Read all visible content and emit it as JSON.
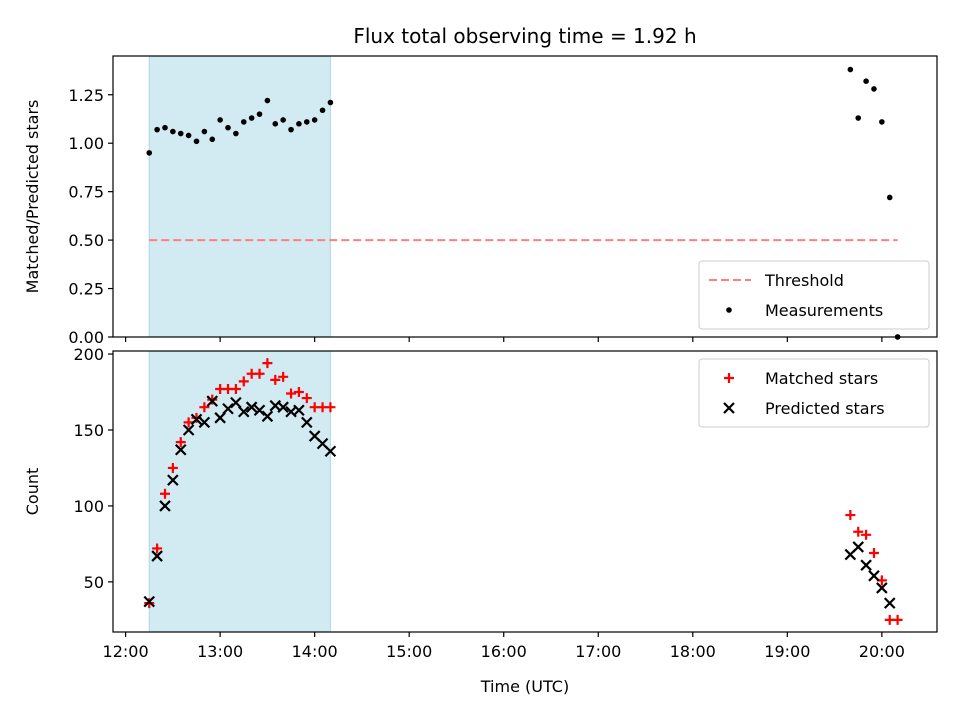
{
  "chart_data": {
    "title": "Flux total observing time = 1.92 h",
    "xlabel": "Time (UTC)",
    "x_ticks": [
      "12:00",
      "13:00",
      "14:00",
      "15:00",
      "16:00",
      "17:00",
      "18:00",
      "19:00",
      "20:00"
    ],
    "x_range": [
      "11:52",
      "20:35"
    ],
    "shaded_span": [
      "12:15",
      "14:10"
    ],
    "shade_color": "#add8e6",
    "panels": [
      {
        "type": "scatter",
        "ylabel": "Matched/Predicted stars",
        "ylim": [
          0.0,
          1.45
        ],
        "y_ticks": [
          "0.00",
          "0.25",
          "0.50",
          "0.75",
          "1.00",
          "1.25"
        ],
        "legend_position": "lower-right",
        "threshold": {
          "name": "Threshold",
          "value": 0.5,
          "x_range": [
            "12:15",
            "20:10"
          ],
          "color": "#ff7f7f"
        },
        "series": [
          {
            "name": "Measurements",
            "marker": "dot",
            "color": "#000000",
            "points": [
              [
                "12:15",
                0.95
              ],
              [
                "12:20",
                1.07
              ],
              [
                "12:25",
                1.08
              ],
              [
                "12:30",
                1.06
              ],
              [
                "12:35",
                1.05
              ],
              [
                "12:40",
                1.04
              ],
              [
                "12:45",
                1.01
              ],
              [
                "12:50",
                1.06
              ],
              [
                "12:55",
                1.02
              ],
              [
                "13:00",
                1.12
              ],
              [
                "13:05",
                1.08
              ],
              [
                "13:10",
                1.05
              ],
              [
                "13:15",
                1.11
              ],
              [
                "13:20",
                1.13
              ],
              [
                "13:25",
                1.15
              ],
              [
                "13:30",
                1.22
              ],
              [
                "13:35",
                1.1
              ],
              [
                "13:40",
                1.12
              ],
              [
                "13:45",
                1.07
              ],
              [
                "13:50",
                1.1
              ],
              [
                "13:55",
                1.11
              ],
              [
                "14:00",
                1.12
              ],
              [
                "14:05",
                1.17
              ],
              [
                "14:10",
                1.21
              ],
              [
                "19:40",
                1.38
              ],
              [
                "19:45",
                1.13
              ],
              [
                "19:50",
                1.32
              ],
              [
                "19:55",
                1.28
              ],
              [
                "20:00",
                1.11
              ],
              [
                "20:05",
                0.72
              ],
              [
                "20:10",
                0.0
              ]
            ]
          }
        ]
      },
      {
        "type": "scatter",
        "ylabel": "Count",
        "ylim": [
          17,
          202
        ],
        "y_ticks": [
          "50",
          "100",
          "150",
          "200"
        ],
        "legend_position": "upper-right",
        "series": [
          {
            "name": "Matched stars",
            "marker": "plus",
            "color": "#ff0000",
            "points": [
              [
                "12:15",
                36
              ],
              [
                "12:20",
                72
              ],
              [
                "12:25",
                108
              ],
              [
                "12:30",
                125
              ],
              [
                "12:35",
                142
              ],
              [
                "12:40",
                155
              ],
              [
                "12:45",
                158
              ],
              [
                "12:50",
                165
              ],
              [
                "12:55",
                170
              ],
              [
                "13:00",
                177
              ],
              [
                "13:05",
                177
              ],
              [
                "13:10",
                177
              ],
              [
                "13:15",
                182
              ],
              [
                "13:20",
                187
              ],
              [
                "13:25",
                187
              ],
              [
                "13:30",
                194
              ],
              [
                "13:35",
                183
              ],
              [
                "13:40",
                185
              ],
              [
                "13:45",
                174
              ],
              [
                "13:50",
                175
              ],
              [
                "13:55",
                171
              ],
              [
                "14:00",
                165
              ],
              [
                "14:05",
                165
              ],
              [
                "14:10",
                165
              ],
              [
                "19:40",
                94
              ],
              [
                "19:45",
                83
              ],
              [
                "19:50",
                81
              ],
              [
                "19:55",
                69
              ],
              [
                "20:00",
                51
              ],
              [
                "20:05",
                25
              ],
              [
                "20:10",
                25
              ]
            ]
          },
          {
            "name": "Predicted stars",
            "marker": "cross",
            "color": "#000000",
            "points": [
              [
                "12:15",
                37
              ],
              [
                "12:20",
                67
              ],
              [
                "12:25",
                100
              ],
              [
                "12:30",
                117
              ],
              [
                "12:35",
                137
              ],
              [
                "12:40",
                150
              ],
              [
                "12:45",
                157
              ],
              [
                "12:50",
                155
              ],
              [
                "12:55",
                169
              ],
              [
                "13:00",
                158
              ],
              [
                "13:05",
                164
              ],
              [
                "13:10",
                168
              ],
              [
                "13:15",
                162
              ],
              [
                "13:20",
                165
              ],
              [
                "13:25",
                163
              ],
              [
                "13:30",
                159
              ],
              [
                "13:35",
                166
              ],
              [
                "13:40",
                165
              ],
              [
                "13:45",
                162
              ],
              [
                "13:50",
                163
              ],
              [
                "13:55",
                155
              ],
              [
                "14:00",
                146
              ],
              [
                "14:05",
                141
              ],
              [
                "14:10",
                136
              ],
              [
                "19:40",
                68
              ],
              [
                "19:45",
                73
              ],
              [
                "19:50",
                61
              ],
              [
                "19:55",
                54
              ],
              [
                "20:00",
                46
              ],
              [
                "20:05",
                36
              ]
            ]
          }
        ]
      }
    ]
  }
}
